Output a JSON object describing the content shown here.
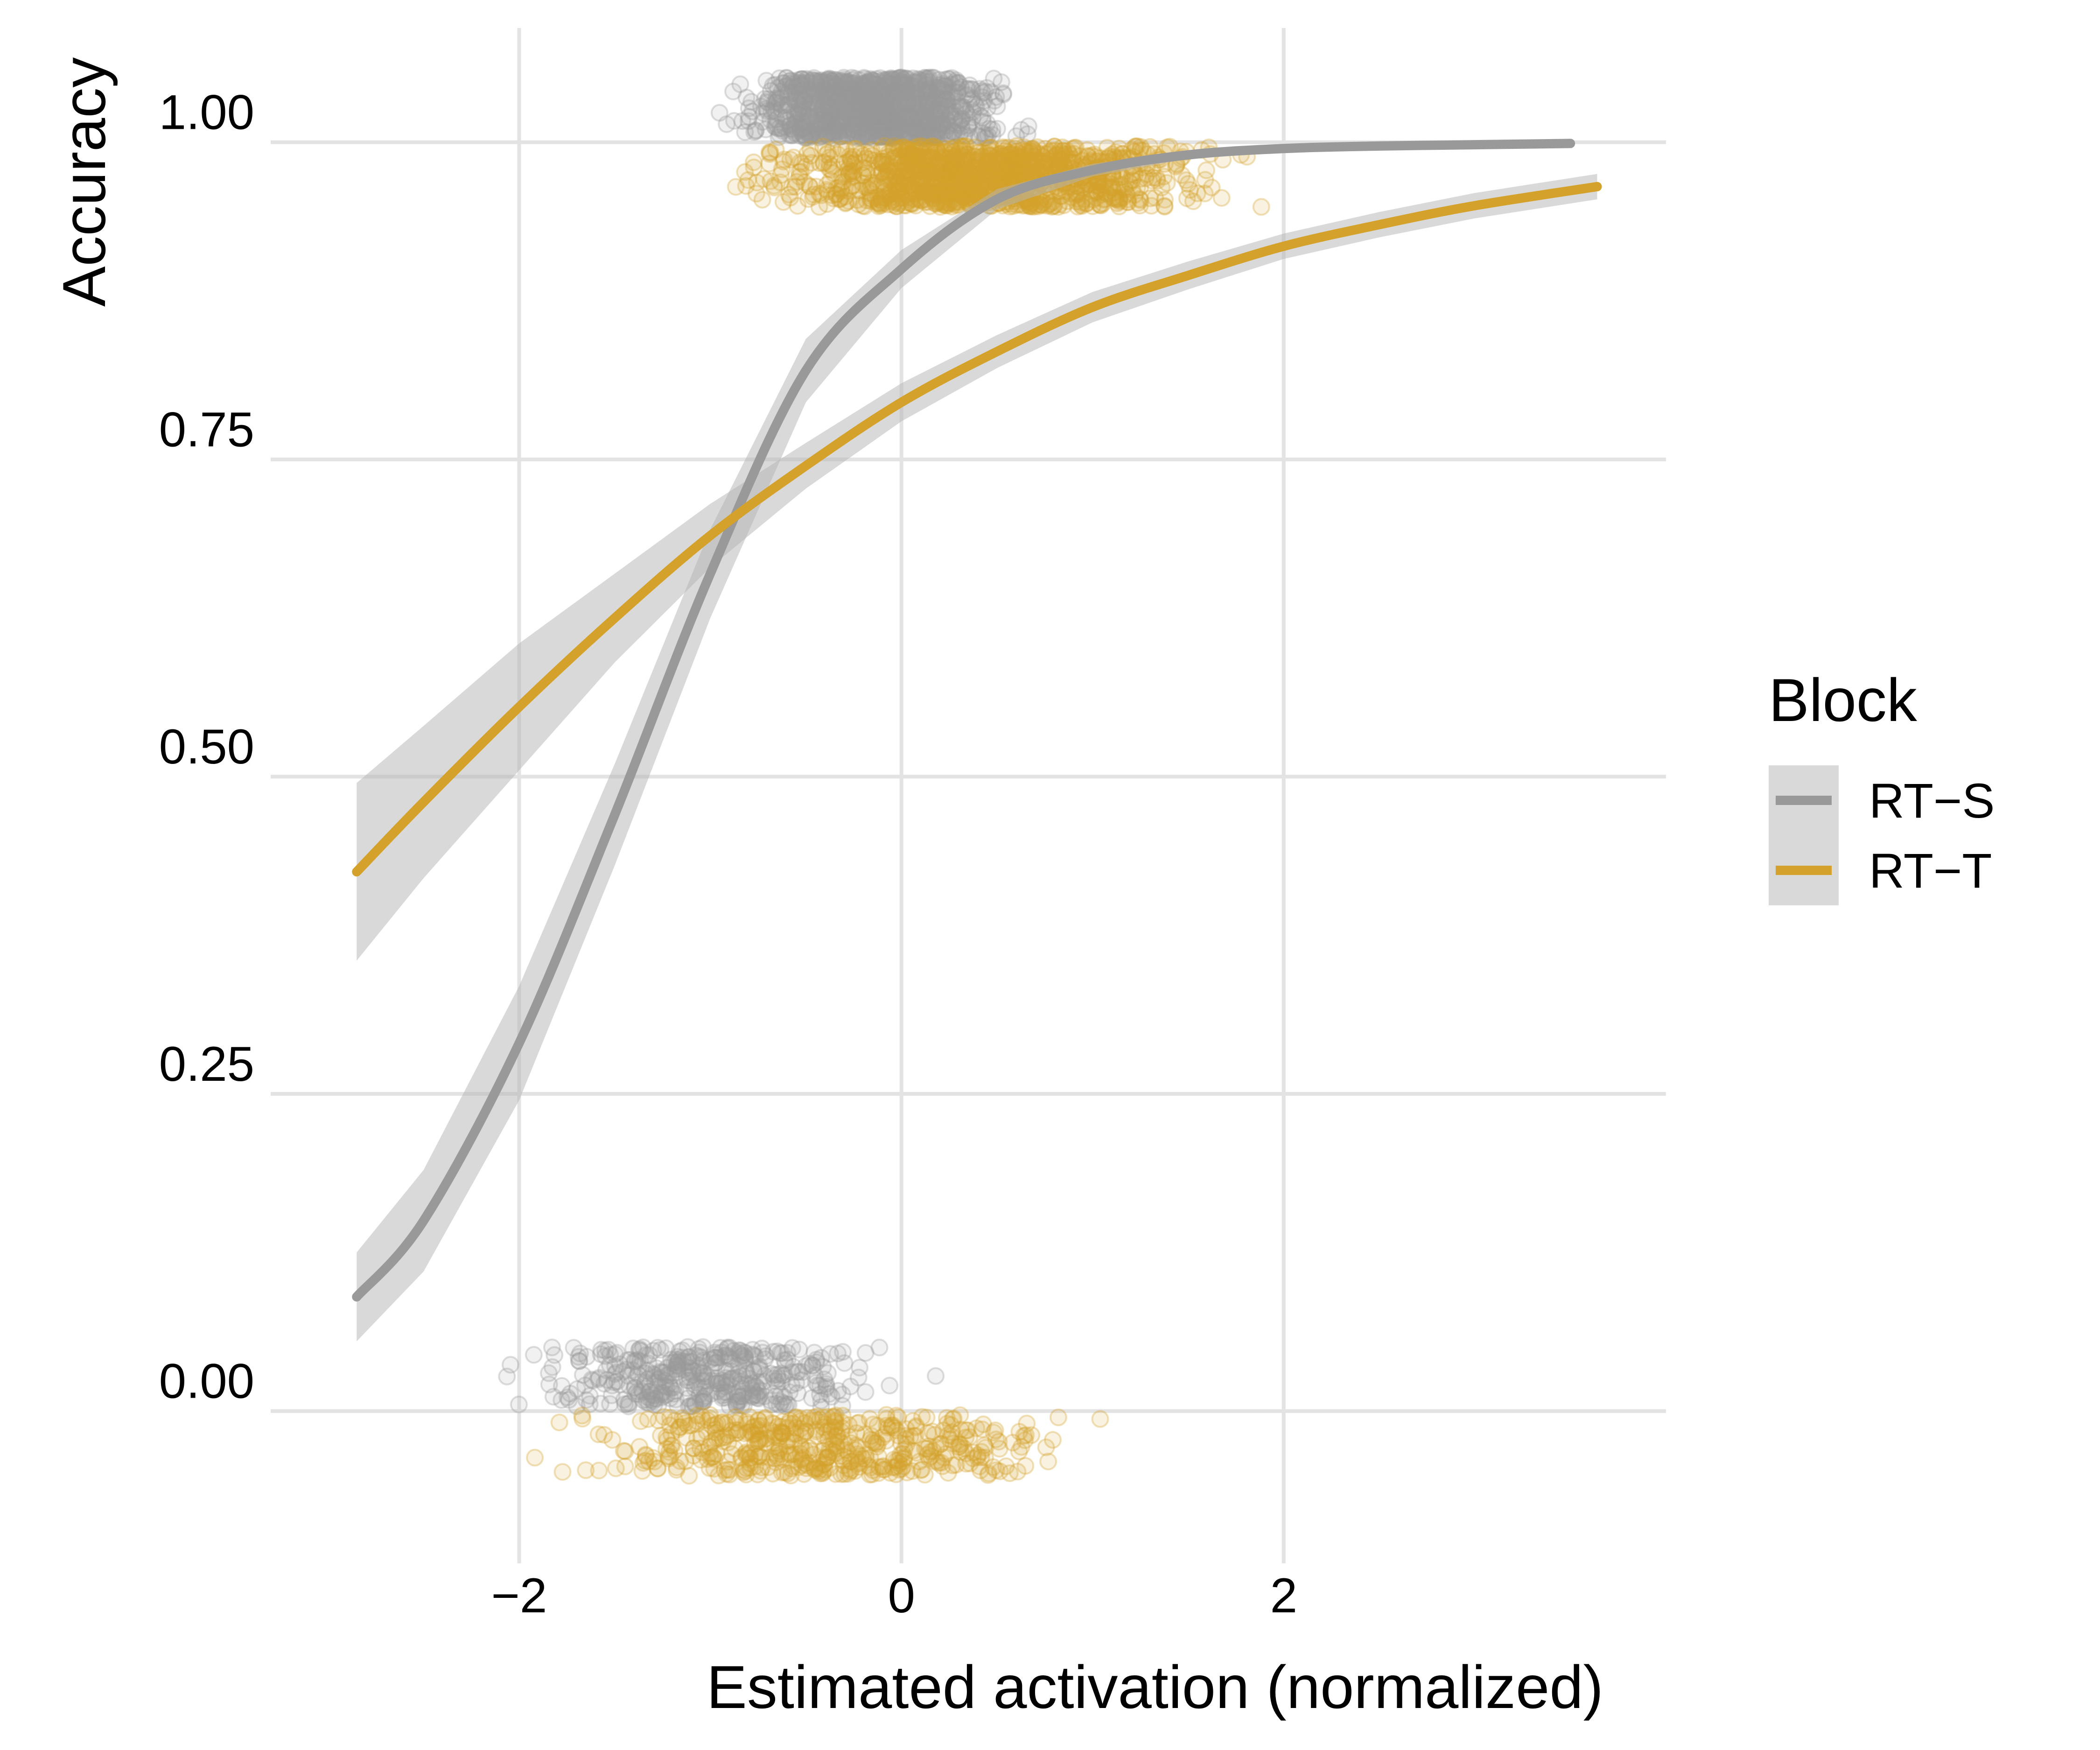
{
  "chart_data": {
    "type": "scatter",
    "xlabel": "Estimated activation (normalized)",
    "ylabel": "Accuracy",
    "xlim": [
      -3.3,
      4.0
    ],
    "ylim": [
      -0.12,
      1.09
    ],
    "x_ticks": [
      {
        "value": -2,
        "label": "−2"
      },
      {
        "value": 0,
        "label": "0"
      },
      {
        "value": 2,
        "label": "2"
      }
    ],
    "y_ticks": [
      {
        "value": 0.0,
        "label": "0.00"
      },
      {
        "value": 0.25,
        "label": "0.25"
      },
      {
        "value": 0.5,
        "label": "0.50"
      },
      {
        "value": 0.75,
        "label": "0.75"
      },
      {
        "value": 1.0,
        "label": "1.00"
      }
    ],
    "grid": true,
    "legend": {
      "title": "Block",
      "position": "right",
      "entries": [
        "RT−S",
        "RT−T"
      ]
    },
    "series": [
      {
        "name": "RT−S",
        "color": "#999999",
        "fit": "logistic",
        "curve": {
          "x": [
            -2.85,
            -2.5,
            -2.0,
            -1.5,
            -1.0,
            -0.5,
            0.0,
            0.5,
            1.0,
            1.5,
            2.0,
            2.5,
            3.0,
            3.5
          ],
          "y": [
            0.09,
            0.15,
            0.29,
            0.47,
            0.66,
            0.82,
            0.9,
            0.955,
            0.978,
            0.99,
            0.995,
            0.997,
            0.998,
            0.999
          ]
        },
        "ci_halfwidth": [
          0.035,
          0.04,
          0.045,
          0.04,
          0.035,
          0.025,
          0.015,
          0.008,
          0.005,
          0.003,
          0.002,
          0.002,
          0.002,
          0.002
        ],
        "jitter": {
          "correct_y_center": 1.027,
          "error_y_center": 0.027,
          "spread": 0.024
        }
      },
      {
        "name": "RT−T",
        "color": "#D4A12A",
        "fit": "logistic",
        "curve": {
          "x": [
            -2.85,
            -2.5,
            -2.0,
            -1.5,
            -1.0,
            -0.5,
            0.0,
            0.5,
            1.0,
            1.5,
            2.0,
            2.5,
            3.0,
            3.64
          ],
          "y": [
            0.425,
            0.48,
            0.555,
            0.625,
            0.69,
            0.745,
            0.795,
            0.835,
            0.87,
            0.895,
            0.918,
            0.935,
            0.95,
            0.965
          ]
        },
        "ci_halfwidth": [
          0.07,
          0.06,
          0.05,
          0.035,
          0.025,
          0.018,
          0.015,
          0.013,
          0.012,
          0.011,
          0.01,
          0.01,
          0.01,
          0.01
        ],
        "jitter": {
          "correct_y_center": 0.973,
          "error_y_center": -0.027,
          "spread": 0.024
        }
      }
    ]
  }
}
